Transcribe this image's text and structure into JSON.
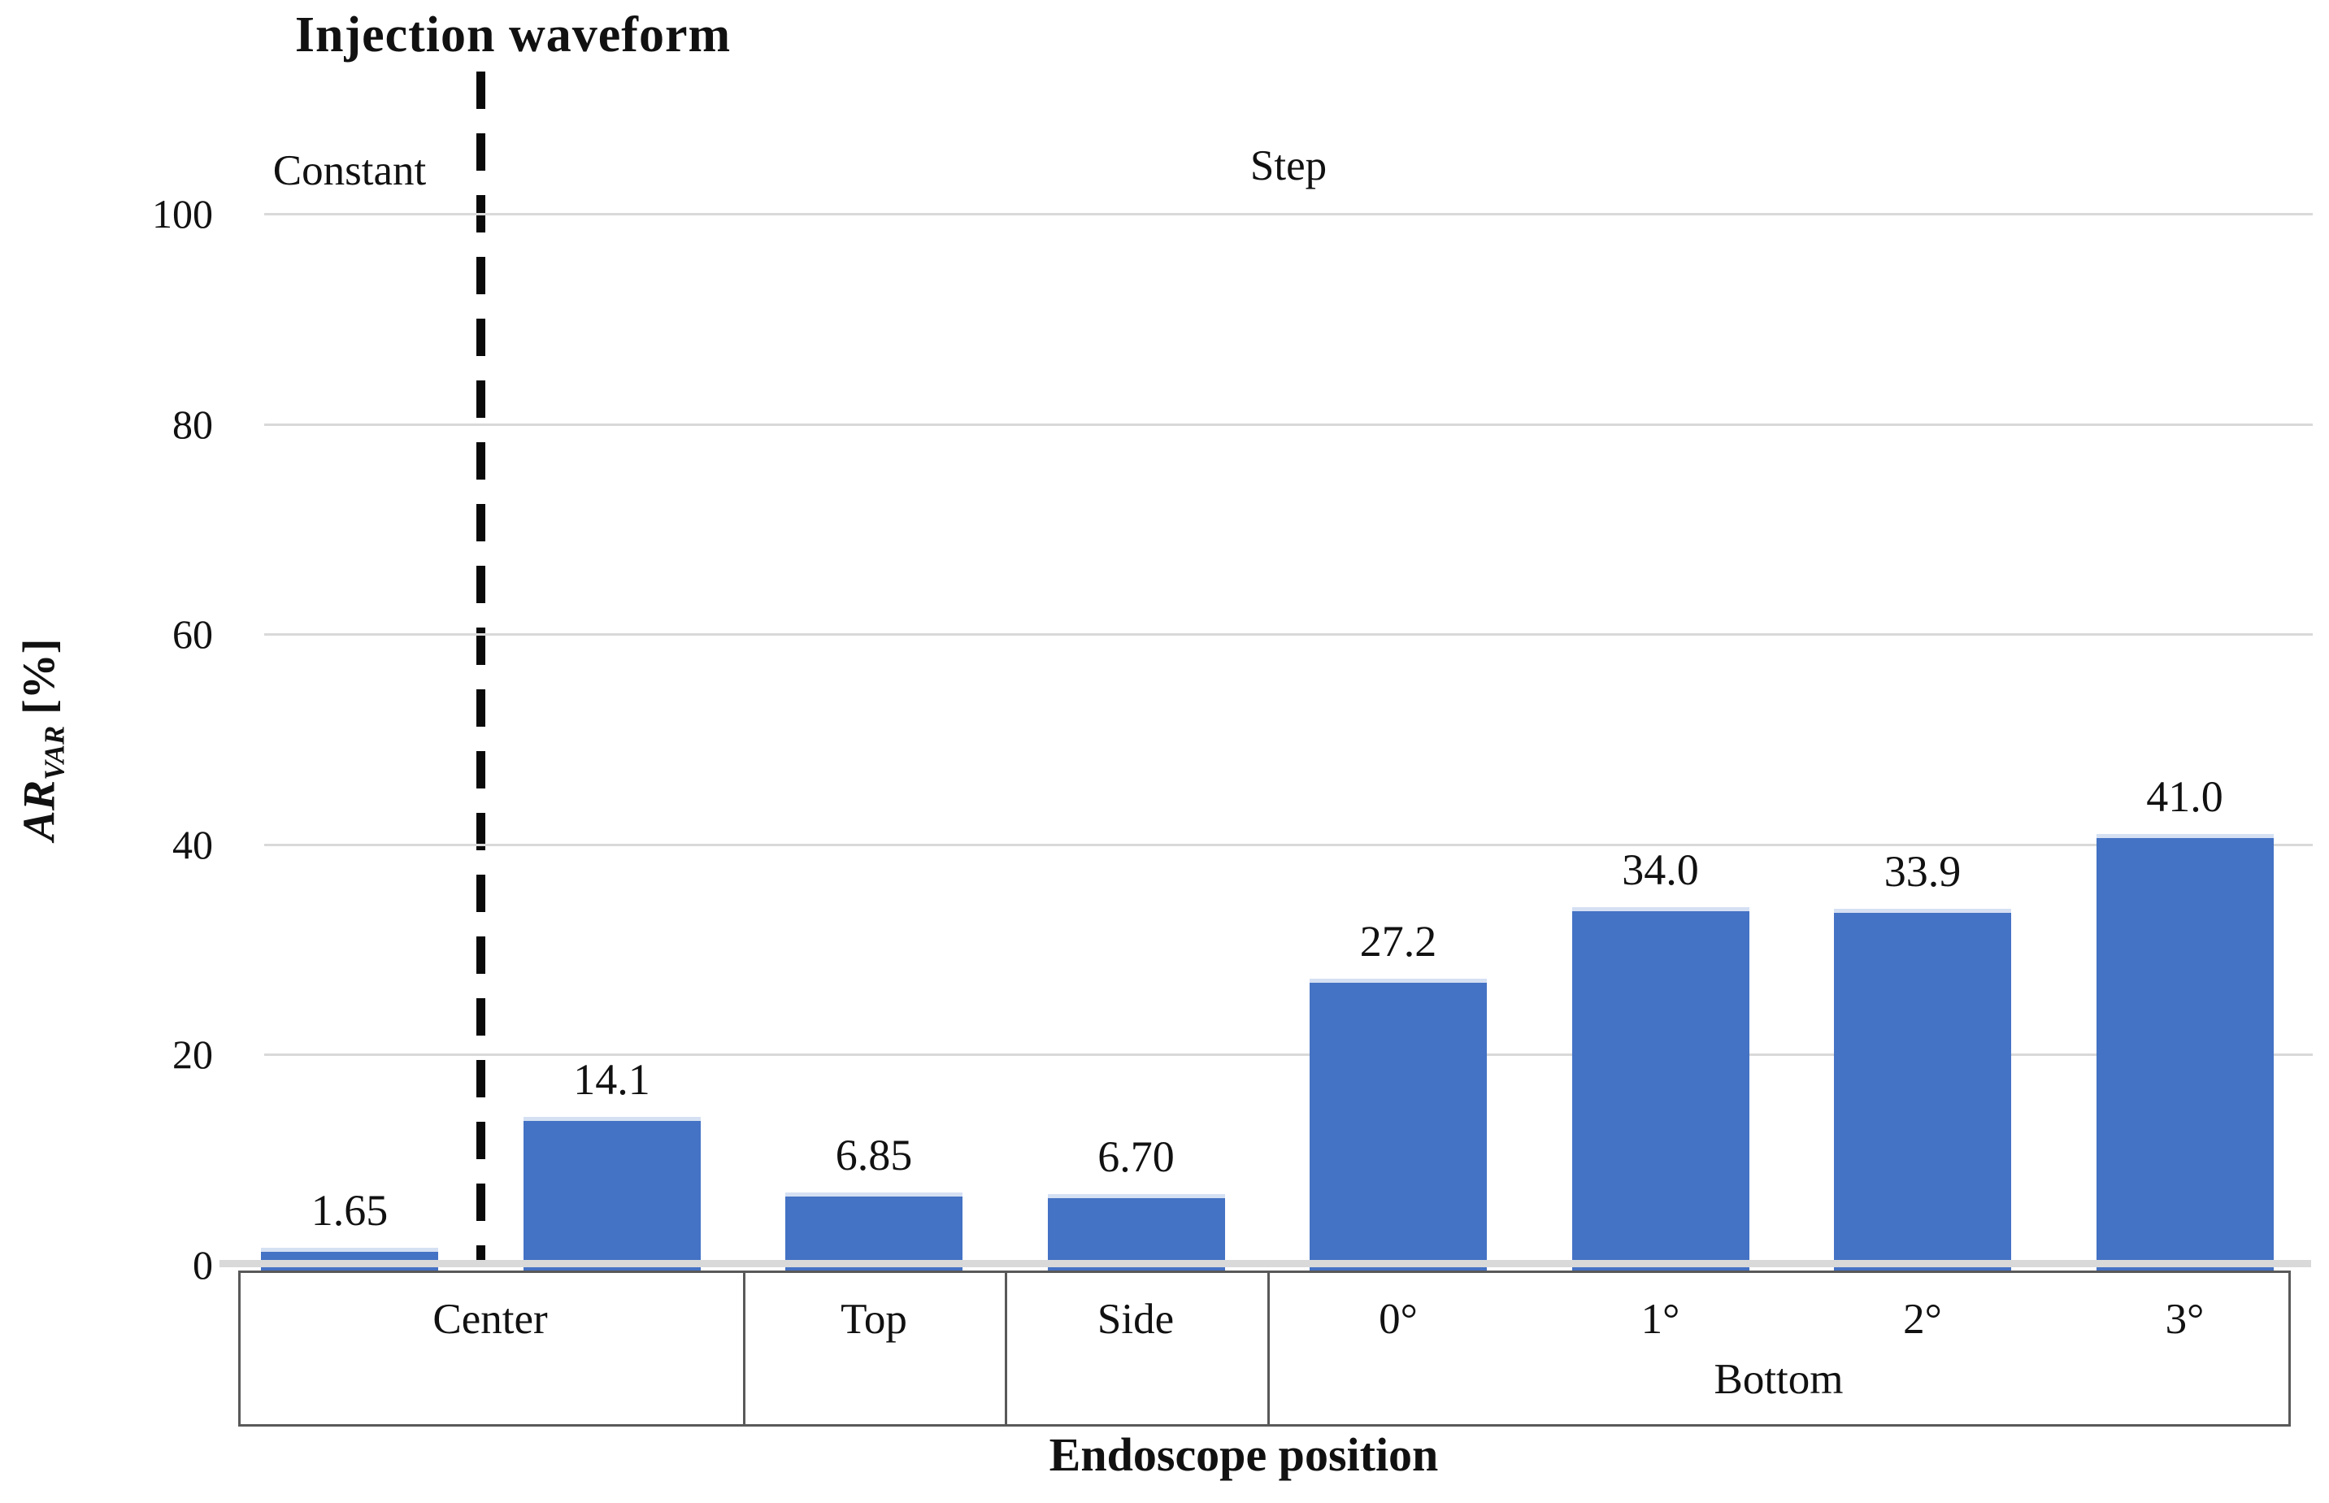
{
  "chart": {
    "title": "Injection waveform",
    "sections": {
      "left_label": "Constant",
      "right_label": "Step"
    },
    "y_axis": {
      "title_main": "AR",
      "title_sub": "VAR",
      "title_unit": " [%]",
      "ticks": [
        100,
        80,
        60,
        40,
        20,
        0
      ]
    },
    "x_axis": {
      "title": "Endoscope position",
      "groups": [
        {
          "label": "Center"
        },
        {
          "label": "Top"
        },
        {
          "label": "Side"
        },
        {
          "label": "Bottom",
          "sublabels": [
            "0°",
            "1°",
            "2°",
            "3°"
          ]
        }
      ]
    },
    "colors": {
      "bar": "#4472C4",
      "gridline": "#d9d9d9",
      "text": "#111111"
    }
  },
  "chart_data": {
    "type": "bar",
    "title": "Injection waveform",
    "xlabel": "Endoscope position",
    "ylabel": "AR_VAR [%]",
    "ylim": [
      0,
      100
    ],
    "grid": "horizontal",
    "legend": "none",
    "categories": [
      "Center (Constant waveform)",
      "Center (Step waveform)",
      "Top (Step waveform)",
      "Side (Step waveform)",
      "Bottom 0° (Step waveform)",
      "Bottom 1° (Step waveform)",
      "Bottom 2° (Step waveform)",
      "Bottom 3° (Step waveform)"
    ],
    "values": [
      1.65,
      14.1,
      6.85,
      6.7,
      27.2,
      34.0,
      33.9,
      41.0
    ],
    "value_labels": [
      "1.65",
      "14.1",
      "6.85",
      "6.70",
      "27.2",
      "34.0",
      "33.9",
      "41.0"
    ]
  }
}
